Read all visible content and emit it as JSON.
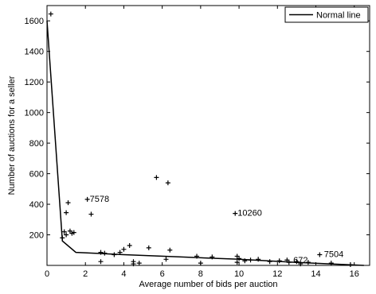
{
  "chart_data": {
    "type": "scatter",
    "title": "",
    "xlabel": "Average number of bids per auction",
    "ylabel": "Number of auctions for a seller",
    "xlim": [
      0,
      16.8
    ],
    "ylim": [
      0,
      1700
    ],
    "xticks": [
      0,
      2,
      4,
      6,
      8,
      10,
      12,
      14,
      16
    ],
    "yticks": [
      200,
      400,
      600,
      800,
      1000,
      1200,
      1400,
      1600
    ],
    "grid": false,
    "legend": {
      "position": "top-right",
      "entries": [
        "Normal line"
      ]
    },
    "series": [
      {
        "kind": "points",
        "marker": "plus",
        "x": [
          0.2,
          0.8,
          0.9,
          1.0,
          1.1,
          1.2,
          1.3,
          1.4,
          1.0,
          2.1,
          2.3,
          2.8,
          3.5,
          3.8,
          4.0,
          4.3,
          4.5,
          4.8,
          5.3,
          5.7,
          6.3,
          6.4,
          7.8,
          8.6,
          9.8,
          9.9,
          10.0,
          10.3,
          10.6,
          11.0,
          11.6,
          12.1,
          12.6,
          13.0,
          13.6,
          14.2,
          14.8,
          15.8,
          2.8,
          4.5,
          6.2,
          9.9,
          13.2,
          3.0,
          8.0,
          12.5
        ],
        "y": [
          1645,
          180,
          220,
          200,
          410,
          225,
          210,
          215,
          345,
          432,
          335,
          85,
          70,
          85,
          105,
          130,
          25,
          15,
          115,
          575,
          540,
          100,
          60,
          55,
          340,
          60,
          45,
          30,
          35,
          40,
          25,
          30,
          20,
          25,
          20,
          70,
          15,
          5,
          25,
          10,
          40,
          20,
          10,
          80,
          15,
          35
        ]
      },
      {
        "kind": "line",
        "name": "Normal line",
        "x": [
          0.0,
          0.8,
          1.5,
          4.0,
          7.0,
          10.0,
          13.0,
          16.5
        ],
        "y": [
          1600,
          160,
          85,
          70,
          55,
          40,
          20,
          0
        ]
      }
    ],
    "annotations": [
      {
        "text": "7578",
        "x": 2.1,
        "y": 432
      },
      {
        "text": "10260",
        "x": 9.8,
        "y": 340
      },
      {
        "text": "672",
        "x": 12.7,
        "y": 30
      },
      {
        "text": "7504",
        "x": 14.3,
        "y": 70
      }
    ]
  }
}
